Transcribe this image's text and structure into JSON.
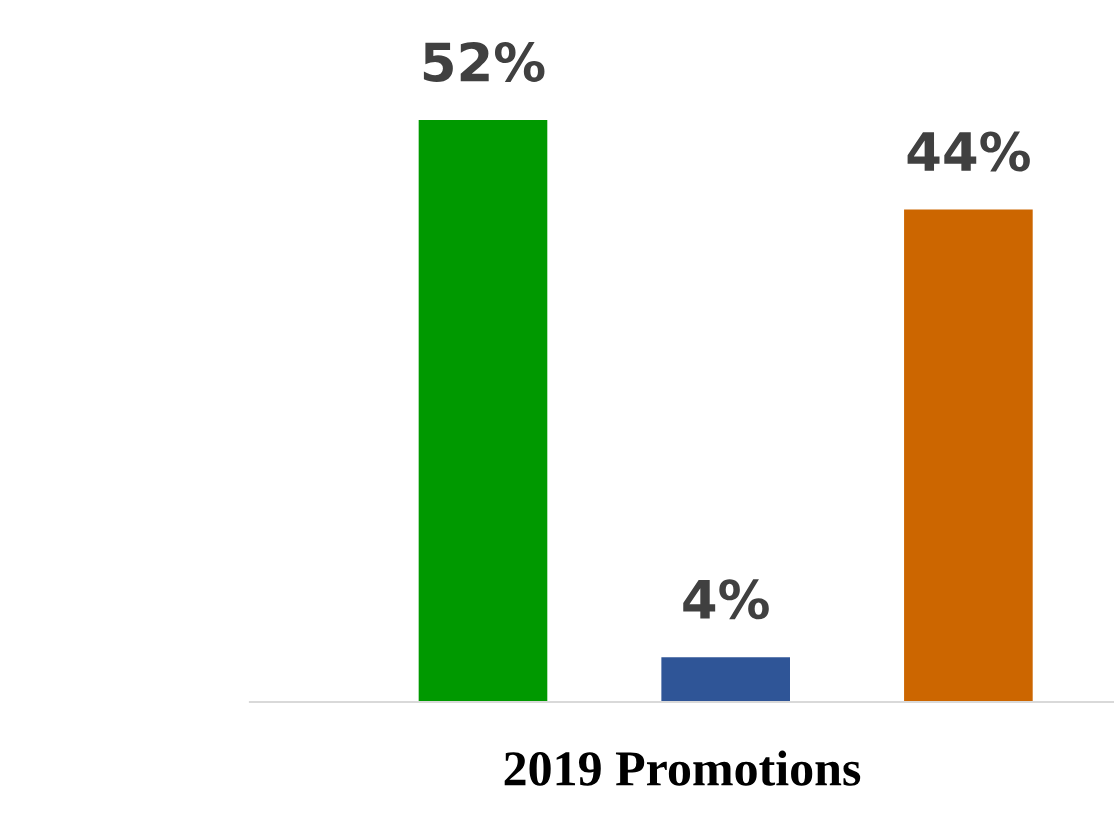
{
  "chart_data": {
    "type": "bar",
    "categories": [
      null,
      null,
      null
    ],
    "values": [
      52,
      4,
      44
    ],
    "colors": [
      "#009900",
      "#2f5597",
      "#cc6600"
    ],
    "value_labels": [
      "52%",
      "4%",
      "44%"
    ],
    "xlabel": "2019 Promotions",
    "grid": false,
    "legend": false
  }
}
